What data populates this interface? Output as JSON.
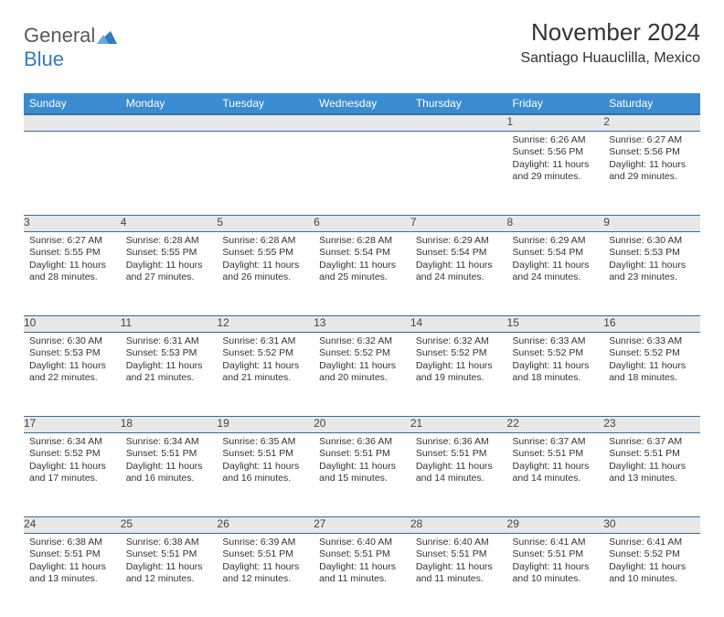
{
  "brand": {
    "part1": "General",
    "part2": "Blue"
  },
  "title": "November 2024",
  "location": "Santiago Huauclilla, Mexico",
  "colors": {
    "header_bg": "#3b8bd0",
    "header_border": "#2f6fa8",
    "daynum_bg": "#e8e8e8",
    "text": "#333333",
    "brand_gray": "#5a5a5a",
    "brand_blue": "#2f7bc4"
  },
  "weekdays": [
    "Sunday",
    "Monday",
    "Tuesday",
    "Wednesday",
    "Thursday",
    "Friday",
    "Saturday"
  ],
  "weeks": [
    [
      null,
      null,
      null,
      null,
      null,
      {
        "n": "1",
        "sr": "6:26 AM",
        "ss": "5:56 PM",
        "dl1": "11 hours",
        "dl2": "and 29 minutes."
      },
      {
        "n": "2",
        "sr": "6:27 AM",
        "ss": "5:56 PM",
        "dl1": "11 hours",
        "dl2": "and 29 minutes."
      }
    ],
    [
      {
        "n": "3",
        "sr": "6:27 AM",
        "ss": "5:55 PM",
        "dl1": "11 hours",
        "dl2": "and 28 minutes."
      },
      {
        "n": "4",
        "sr": "6:28 AM",
        "ss": "5:55 PM",
        "dl1": "11 hours",
        "dl2": "and 27 minutes."
      },
      {
        "n": "5",
        "sr": "6:28 AM",
        "ss": "5:55 PM",
        "dl1": "11 hours",
        "dl2": "and 26 minutes."
      },
      {
        "n": "6",
        "sr": "6:28 AM",
        "ss": "5:54 PM",
        "dl1": "11 hours",
        "dl2": "and 25 minutes."
      },
      {
        "n": "7",
        "sr": "6:29 AM",
        "ss": "5:54 PM",
        "dl1": "11 hours",
        "dl2": "and 24 minutes."
      },
      {
        "n": "8",
        "sr": "6:29 AM",
        "ss": "5:54 PM",
        "dl1": "11 hours",
        "dl2": "and 24 minutes."
      },
      {
        "n": "9",
        "sr": "6:30 AM",
        "ss": "5:53 PM",
        "dl1": "11 hours",
        "dl2": "and 23 minutes."
      }
    ],
    [
      {
        "n": "10",
        "sr": "6:30 AM",
        "ss": "5:53 PM",
        "dl1": "11 hours",
        "dl2": "and 22 minutes."
      },
      {
        "n": "11",
        "sr": "6:31 AM",
        "ss": "5:53 PM",
        "dl1": "11 hours",
        "dl2": "and 21 minutes."
      },
      {
        "n": "12",
        "sr": "6:31 AM",
        "ss": "5:52 PM",
        "dl1": "11 hours",
        "dl2": "and 21 minutes."
      },
      {
        "n": "13",
        "sr": "6:32 AM",
        "ss": "5:52 PM",
        "dl1": "11 hours",
        "dl2": "and 20 minutes."
      },
      {
        "n": "14",
        "sr": "6:32 AM",
        "ss": "5:52 PM",
        "dl1": "11 hours",
        "dl2": "and 19 minutes."
      },
      {
        "n": "15",
        "sr": "6:33 AM",
        "ss": "5:52 PM",
        "dl1": "11 hours",
        "dl2": "and 18 minutes."
      },
      {
        "n": "16",
        "sr": "6:33 AM",
        "ss": "5:52 PM",
        "dl1": "11 hours",
        "dl2": "and 18 minutes."
      }
    ],
    [
      {
        "n": "17",
        "sr": "6:34 AM",
        "ss": "5:52 PM",
        "dl1": "11 hours",
        "dl2": "and 17 minutes."
      },
      {
        "n": "18",
        "sr": "6:34 AM",
        "ss": "5:51 PM",
        "dl1": "11 hours",
        "dl2": "and 16 minutes."
      },
      {
        "n": "19",
        "sr": "6:35 AM",
        "ss": "5:51 PM",
        "dl1": "11 hours",
        "dl2": "and 16 minutes."
      },
      {
        "n": "20",
        "sr": "6:36 AM",
        "ss": "5:51 PM",
        "dl1": "11 hours",
        "dl2": "and 15 minutes."
      },
      {
        "n": "21",
        "sr": "6:36 AM",
        "ss": "5:51 PM",
        "dl1": "11 hours",
        "dl2": "and 14 minutes."
      },
      {
        "n": "22",
        "sr": "6:37 AM",
        "ss": "5:51 PM",
        "dl1": "11 hours",
        "dl2": "and 14 minutes."
      },
      {
        "n": "23",
        "sr": "6:37 AM",
        "ss": "5:51 PM",
        "dl1": "11 hours",
        "dl2": "and 13 minutes."
      }
    ],
    [
      {
        "n": "24",
        "sr": "6:38 AM",
        "ss": "5:51 PM",
        "dl1": "11 hours",
        "dl2": "and 13 minutes."
      },
      {
        "n": "25",
        "sr": "6:38 AM",
        "ss": "5:51 PM",
        "dl1": "11 hours",
        "dl2": "and 12 minutes."
      },
      {
        "n": "26",
        "sr": "6:39 AM",
        "ss": "5:51 PM",
        "dl1": "11 hours",
        "dl2": "and 12 minutes."
      },
      {
        "n": "27",
        "sr": "6:40 AM",
        "ss": "5:51 PM",
        "dl1": "11 hours",
        "dl2": "and 11 minutes."
      },
      {
        "n": "28",
        "sr": "6:40 AM",
        "ss": "5:51 PM",
        "dl1": "11 hours",
        "dl2": "and 11 minutes."
      },
      {
        "n": "29",
        "sr": "6:41 AM",
        "ss": "5:51 PM",
        "dl1": "11 hours",
        "dl2": "and 10 minutes."
      },
      {
        "n": "30",
        "sr": "6:41 AM",
        "ss": "5:52 PM",
        "dl1": "11 hours",
        "dl2": "and 10 minutes."
      }
    ]
  ],
  "labels": {
    "sunrise": "Sunrise: ",
    "sunset": "Sunset: ",
    "daylight": "Daylight: "
  }
}
